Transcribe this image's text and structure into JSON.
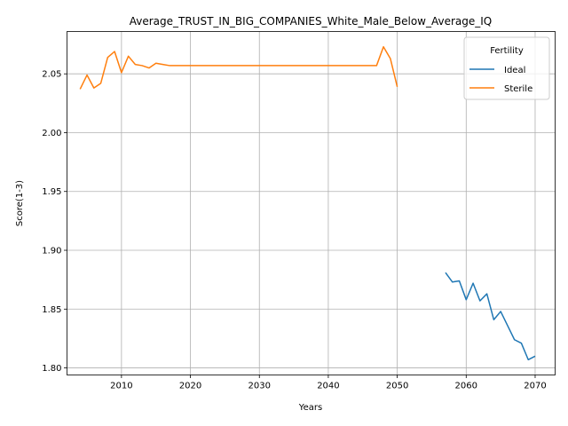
{
  "chart_data": {
    "type": "line",
    "title": "Average_TRUST_IN_BIG_COMPANIES_White_Male_Below_Average_IQ",
    "xlabel": "Years",
    "ylabel": "Score(1-3)",
    "xlim": [
      2002.1,
      2072.9
    ],
    "ylim": [
      1.794,
      2.086
    ],
    "xticks": [
      2010,
      2020,
      2030,
      2040,
      2050,
      2060,
      2070
    ],
    "yticks": [
      1.8,
      1.85,
      1.9,
      1.95,
      2.0,
      2.05
    ],
    "ytick_labels": [
      "1.80",
      "1.85",
      "1.90",
      "1.95",
      "2.00",
      "2.05"
    ],
    "grid": true,
    "legend": {
      "title": "Fertility",
      "position": "top-right"
    },
    "series": [
      {
        "name": "Ideal",
        "color": "#1f77b4",
        "x": [
          2057,
          2058,
          2059,
          2060,
          2061,
          2062,
          2063,
          2064,
          2065,
          2066,
          2067,
          2068,
          2069,
          2070
        ],
        "y": [
          1.881,
          1.873,
          1.874,
          1.858,
          1.872,
          1.857,
          1.863,
          1.841,
          1.848,
          1.836,
          1.824,
          1.821,
          1.807,
          1.81
        ]
      },
      {
        "name": "Sterile",
        "color": "#ff7f0e",
        "x": [
          2004,
          2005,
          2006,
          2007,
          2008,
          2009,
          2010,
          2011,
          2012,
          2013,
          2014,
          2015,
          2016,
          2017,
          2018,
          2019,
          2020,
          2025,
          2030,
          2035,
          2040,
          2045,
          2046,
          2047,
          2048,
          2049,
          2050
        ],
        "y": [
          2.037,
          2.049,
          2.038,
          2.042,
          2.064,
          2.069,
          2.051,
          2.065,
          2.058,
          2.057,
          2.055,
          2.059,
          2.058,
          2.057,
          2.057,
          2.057,
          2.057,
          2.057,
          2.057,
          2.057,
          2.057,
          2.057,
          2.057,
          2.057,
          2.073,
          2.063,
          2.039
        ]
      }
    ]
  }
}
